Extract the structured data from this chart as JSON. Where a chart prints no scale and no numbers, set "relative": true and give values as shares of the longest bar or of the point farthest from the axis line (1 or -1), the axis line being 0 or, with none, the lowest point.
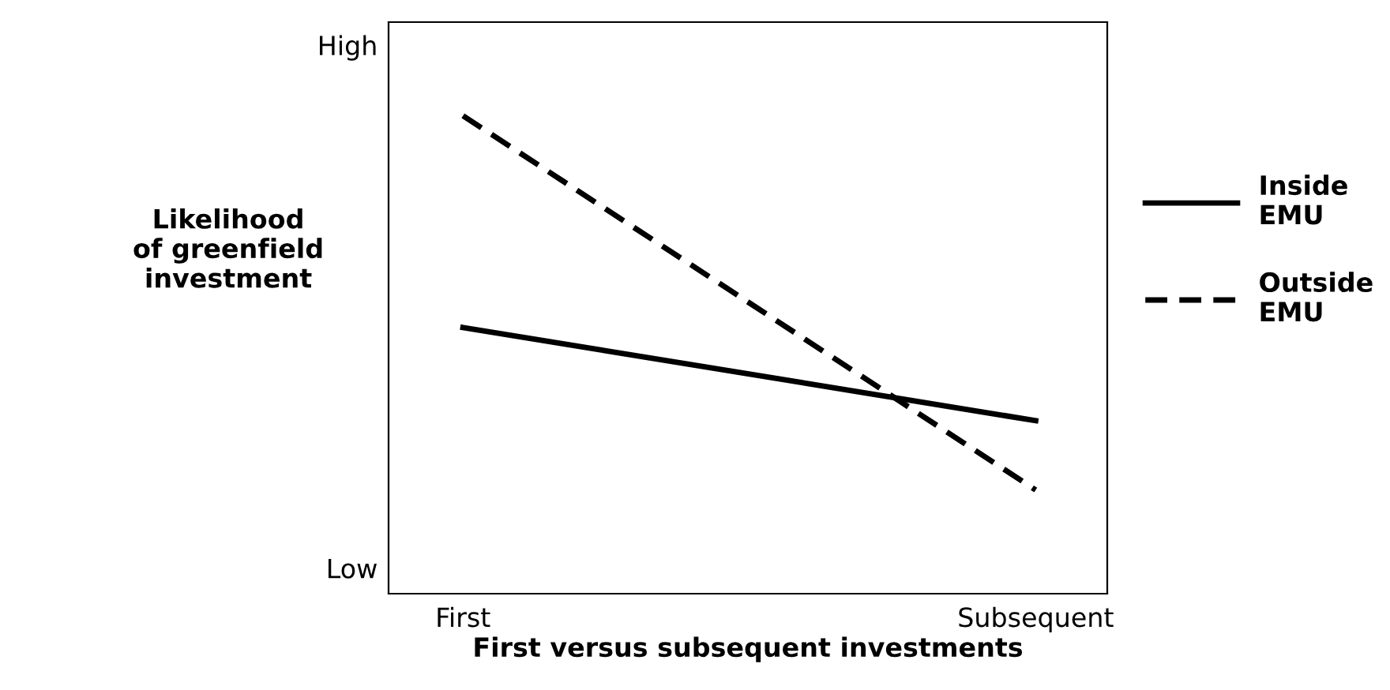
{
  "chart_data": {
    "type": "line",
    "xlabel": "First versus subsequent investments",
    "ylabel": "Likelihood\nof greenfield\ninvestment",
    "categories": [
      "First",
      "Subsequent"
    ],
    "relative": true,
    "annotations": [
      "High",
      "Low"
    ],
    "series": [
      {
        "name": "Inside\nEMU",
        "color": "#000000",
        "line_style": "solid",
        "values": [
          0.557,
          0.362
        ]
      },
      {
        "name": "Outside\nEMU",
        "color": "#000000",
        "line_style": "dashed",
        "values": [
          1,
          0.217
        ]
      }
    ],
    "grid": false,
    "legend": "right",
    "marker": "none"
  }
}
